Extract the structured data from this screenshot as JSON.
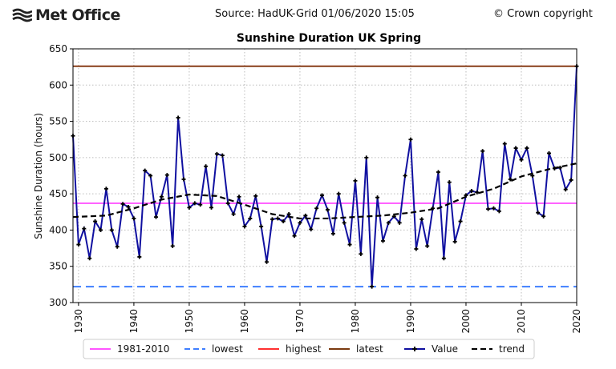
{
  "header": {
    "logo": "Met Office",
    "source": "Source: HadUK-Grid 01/06/2020 15:05",
    "copyright": "© Crown copyright"
  },
  "chart_data": {
    "type": "line",
    "title": "Sunshine Duration UK Spring",
    "xlabel": "",
    "ylabel": "Sunshine Duration (hours)",
    "xlim": [
      1929,
      2020
    ],
    "ylim": [
      300,
      650
    ],
    "xticks": [
      1930,
      1940,
      1950,
      1960,
      1970,
      1980,
      1990,
      2000,
      2010,
      2020
    ],
    "yticks": [
      300,
      350,
      400,
      450,
      500,
      550,
      600,
      650
    ],
    "grid": true,
    "legend_position": "bottom",
    "reference_lines": [
      {
        "name": "1981-2010",
        "value": 437,
        "color": "#ff55ff",
        "style": "solid"
      },
      {
        "name": "lowest",
        "value": 322,
        "color": "#3f7fff",
        "style": "dashed"
      },
      {
        "name": "highest",
        "value": 626,
        "color": "#ff3030",
        "style": "solid"
      },
      {
        "name": "latest",
        "value": 626,
        "color": "#7a3a10",
        "style": "solid"
      }
    ],
    "series": [
      {
        "name": "Value",
        "color": "#1010a0",
        "x_start": 1929,
        "values": [
          530,
          380,
          402,
          361,
          412,
          400,
          457,
          400,
          377,
          436,
          432,
          416,
          363,
          482,
          475,
          418,
          446,
          476,
          378,
          555,
          470,
          431,
          437,
          435,
          488,
          431,
          505,
          503,
          437,
          422,
          446,
          405,
          416,
          447,
          405,
          356,
          415,
          416,
          412,
          422,
          392,
          410,
          420,
          401,
          430,
          448,
          428,
          395,
          450,
          410,
          380,
          468,
          367,
          500,
          322,
          445,
          385,
          410,
          419,
          410,
          475,
          525,
          374,
          415,
          378,
          430,
          480,
          361,
          466,
          384,
          412,
          448,
          454,
          452,
          509,
          429,
          430,
          426,
          519,
          470,
          513,
          497,
          513,
          475,
          424,
          419,
          506,
          485,
          486,
          456,
          469,
          626
        ]
      },
      {
        "name": "trend",
        "color": "#000000",
        "style": "dashed",
        "x": [
          1929,
          1935,
          1940,
          1945,
          1950,
          1955,
          1960,
          1965,
          1970,
          1975,
          1980,
          1985,
          1990,
          1995,
          2000,
          2005,
          2010,
          2015,
          2020
        ],
        "values": [
          418,
          420,
          430,
          442,
          449,
          447,
          435,
          422,
          416,
          416,
          418,
          420,
          424,
          430,
          446,
          457,
          474,
          484,
          492
        ]
      }
    ]
  }
}
